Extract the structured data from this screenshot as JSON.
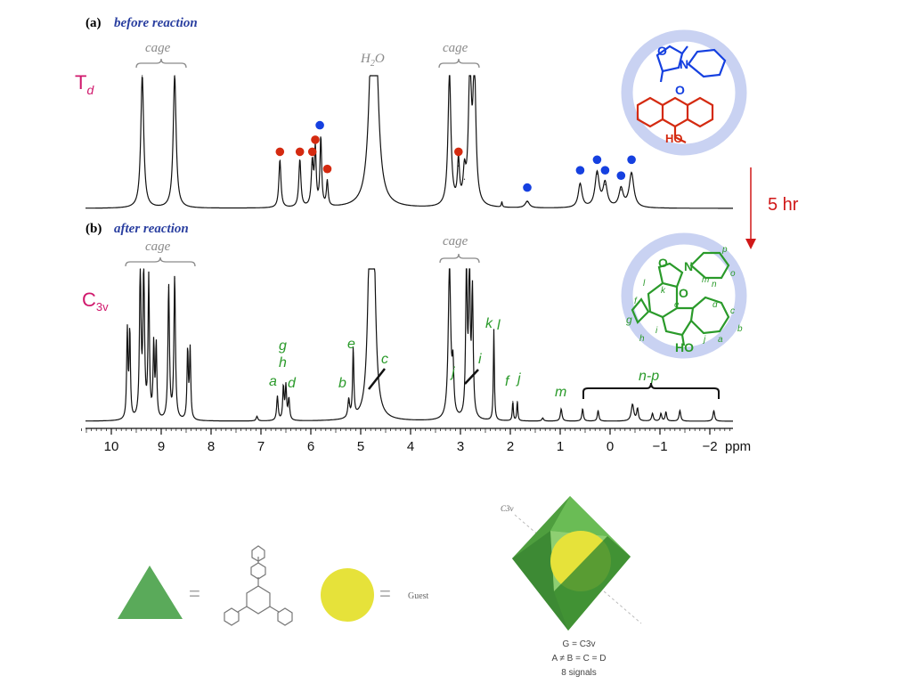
{
  "panel_a": {
    "tag": "(a)",
    "title": "before reaction",
    "symmetry": "T",
    "symmetry_sub": "d"
  },
  "panel_b": {
    "tag": "(b)",
    "title": "after reaction",
    "symmetry": "C",
    "symmetry_sub": "3v"
  },
  "time_label": "5 hr",
  "labels_a": {
    "cage1": "cage",
    "water": "H",
    "water_sub": "2",
    "water_o": "O",
    "cage2": "cage"
  },
  "labels_b": {
    "cage1": "cage",
    "cage2": "cage",
    "range": "n-p"
  },
  "peak_letters": [
    {
      "t": "g"
    },
    {
      "t": "h"
    },
    {
      "t": "a"
    },
    {
      "t": "d"
    },
    {
      "t": "e"
    },
    {
      "t": "b"
    },
    {
      "t": "c"
    },
    {
      "t": "k"
    },
    {
      "t": "l"
    },
    {
      "t": "j"
    },
    {
      "t": "i"
    },
    {
      "t": "f"
    },
    {
      "t": "j"
    },
    {
      "t": "m"
    }
  ],
  "mol_a": {
    "n": "N",
    "o1": "O",
    "o2": "O",
    "ho": "HO"
  },
  "mol_b": {
    "n": "N",
    "o1": "O",
    "o2": "O",
    "ho": "HO",
    "letters": [
      "p",
      "m",
      "n",
      "o",
      "l",
      "f",
      "k",
      "e",
      "g",
      "d",
      "c",
      "i",
      "b",
      "h",
      "j",
      "a"
    ]
  },
  "legend": {
    "equals1": "=",
    "equals2": "=",
    "guest": "Guest",
    "axis_tag": "C3v",
    "line1": "G = C3v",
    "line2": "A ≠ B = C = D",
    "line3": "8 signals"
  },
  "colors": {
    "panel_title": "#2a3fa0",
    "symmetry": "#d0186c",
    "arrow": "#d01818",
    "cage_label": "#8a8a8a",
    "red_dot": "#d42a10",
    "blue_dot": "#1540e0",
    "green": "#2a9a2a",
    "ring": "#c9d2f2",
    "tri_fill": "#5aaa5a",
    "guest_fill": "#e6e23a"
  },
  "chart_data": [
    {
      "type": "line",
      "name": "1H NMR (a) before reaction",
      "xlabel": "ppm",
      "x_reversed": true,
      "xlim": [
        10.8,
        -2.5
      ],
      "xticks": [
        10,
        9,
        8,
        7,
        6,
        5,
        4,
        3,
        2,
        1,
        0,
        -1,
        -2
      ],
      "xtick_labels": [
        "10",
        "9",
        "8",
        "7",
        "6",
        "5",
        "4",
        "3",
        "2",
        "1",
        "0",
        "−1",
        "−2"
      ],
      "peaks": [
        {
          "x": 9.38,
          "h": 1.0,
          "w": 0.035
        },
        {
          "x": 8.73,
          "h": 1.0,
          "w": 0.035
        },
        {
          "x": 6.62,
          "h": 0.36,
          "w": 0.025
        },
        {
          "x": 6.22,
          "h": 0.36,
          "w": 0.025
        },
        {
          "x": 5.97,
          "h": 0.33,
          "w": 0.025
        },
        {
          "x": 5.91,
          "h": 0.42,
          "w": 0.02
        },
        {
          "x": 5.8,
          "h": 0.52,
          "w": 0.02
        },
        {
          "x": 5.67,
          "h": 0.19,
          "w": 0.02
        },
        {
          "x": 4.78,
          "h": 1.0,
          "w": 0.07
        },
        {
          "x": 4.7,
          "h": 1.0,
          "w": 0.07
        },
        {
          "x": 3.22,
          "h": 1.0,
          "w": 0.035
        },
        {
          "x": 3.04,
          "h": 0.32,
          "w": 0.025
        },
        {
          "x": 2.92,
          "h": 0.22,
          "w": 0.03
        },
        {
          "x": 2.81,
          "h": 1.0,
          "w": 0.035
        },
        {
          "x": 2.72,
          "h": 1.0,
          "w": 0.035
        },
        {
          "x": 2.17,
          "h": 0.04,
          "w": 0.012
        },
        {
          "x": 1.66,
          "h": 0.05,
          "w": 0.05
        },
        {
          "x": 0.6,
          "h": 0.18,
          "w": 0.045
        },
        {
          "x": 0.26,
          "h": 0.26,
          "w": 0.05
        },
        {
          "x": 0.1,
          "h": 0.18,
          "w": 0.05
        },
        {
          "x": -0.22,
          "h": 0.14,
          "w": 0.05
        },
        {
          "x": -0.43,
          "h": 0.26,
          "w": 0.055
        }
      ],
      "markers": [
        {
          "x": 6.62,
          "y": 0.36,
          "c": "red"
        },
        {
          "x": 6.22,
          "y": 0.36,
          "c": "red"
        },
        {
          "x": 5.97,
          "y": 0.36,
          "c": "red"
        },
        {
          "x": 5.91,
          "y": 0.45,
          "c": "red"
        },
        {
          "x": 5.82,
          "y": 0.56,
          "c": "blue"
        },
        {
          "x": 5.67,
          "y": 0.23,
          "c": "red"
        },
        {
          "x": 3.04,
          "y": 0.36,
          "c": "red"
        },
        {
          "x": 1.66,
          "y": 0.09,
          "c": "blue"
        },
        {
          "x": 0.6,
          "y": 0.22,
          "c": "blue"
        },
        {
          "x": 0.26,
          "y": 0.3,
          "c": "blue"
        },
        {
          "x": 0.1,
          "y": 0.22,
          "c": "blue"
        },
        {
          "x": -0.22,
          "y": 0.18,
          "c": "blue"
        },
        {
          "x": -0.43,
          "y": 0.3,
          "c": "blue"
        }
      ]
    },
    {
      "type": "line",
      "name": "1H NMR (b) after reaction",
      "xlabel": "ppm",
      "x_reversed": true,
      "xlim": [
        10.8,
        -2.5
      ],
      "xticks": [
        10,
        9,
        8,
        7,
        6,
        5,
        4,
        3,
        2,
        1,
        0,
        -1,
        -2
      ],
      "xtick_labels": [
        "10",
        "9",
        "8",
        "7",
        "6",
        "5",
        "4",
        "3",
        "2",
        "1",
        "0",
        "−1",
        "−2"
      ],
      "peaks": [
        {
          "x": 9.68,
          "h": 0.58,
          "w": 0.015
        },
        {
          "x": 9.63,
          "h": 0.58,
          "w": 0.015
        },
        {
          "x": 9.42,
          "h": 1.0,
          "w": 0.018
        },
        {
          "x": 9.35,
          "h": 1.0,
          "w": 0.018
        },
        {
          "x": 9.25,
          "h": 0.92,
          "w": 0.016
        },
        {
          "x": 9.15,
          "h": 0.48,
          "w": 0.015
        },
        {
          "x": 9.1,
          "h": 0.48,
          "w": 0.015
        },
        {
          "x": 8.85,
          "h": 0.88,
          "w": 0.018
        },
        {
          "x": 8.73,
          "h": 0.94,
          "w": 0.018
        },
        {
          "x": 8.47,
          "h": 0.46,
          "w": 0.015
        },
        {
          "x": 8.42,
          "h": 0.46,
          "w": 0.015
        },
        {
          "x": 7.08,
          "h": 0.03,
          "w": 0.02
        },
        {
          "x": 6.67,
          "h": 0.16,
          "w": 0.018
        },
        {
          "x": 6.55,
          "h": 0.22,
          "w": 0.016
        },
        {
          "x": 6.5,
          "h": 0.22,
          "w": 0.016
        },
        {
          "x": 6.44,
          "h": 0.14,
          "w": 0.018
        },
        {
          "x": 5.24,
          "h": 0.12,
          "w": 0.02
        },
        {
          "x": 5.15,
          "h": 0.45,
          "w": 0.015
        },
        {
          "x": 4.82,
          "h": 1.0,
          "w": 0.05
        },
        {
          "x": 4.74,
          "h": 1.0,
          "w": 0.05
        },
        {
          "x": 3.22,
          "h": 1.0,
          "w": 0.03
        },
        {
          "x": 3.15,
          "h": 0.3,
          "w": 0.02
        },
        {
          "x": 2.88,
          "h": 1.0,
          "w": 0.018
        },
        {
          "x": 2.82,
          "h": 1.0,
          "w": 0.018
        },
        {
          "x": 2.76,
          "h": 0.82,
          "w": 0.018
        },
        {
          "x": 2.33,
          "h": 0.6,
          "w": 0.012
        },
        {
          "x": 1.95,
          "h": 0.13,
          "w": 0.012
        },
        {
          "x": 1.86,
          "h": 0.13,
          "w": 0.012
        },
        {
          "x": 1.35,
          "h": 0.02,
          "w": 0.02
        },
        {
          "x": 0.98,
          "h": 0.08,
          "w": 0.02
        },
        {
          "x": 0.55,
          "h": 0.08,
          "w": 0.018
        },
        {
          "x": 0.24,
          "h": 0.07,
          "w": 0.018
        },
        {
          "x": -0.45,
          "h": 0.11,
          "w": 0.03
        },
        {
          "x": -0.55,
          "h": 0.08,
          "w": 0.02
        },
        {
          "x": -0.85,
          "h": 0.05,
          "w": 0.02
        },
        {
          "x": -1.02,
          "h": 0.05,
          "w": 0.018
        },
        {
          "x": -1.12,
          "h": 0.06,
          "w": 0.018
        },
        {
          "x": -1.4,
          "h": 0.07,
          "w": 0.02
        },
        {
          "x": -2.08,
          "h": 0.07,
          "w": 0.02
        }
      ]
    }
  ]
}
